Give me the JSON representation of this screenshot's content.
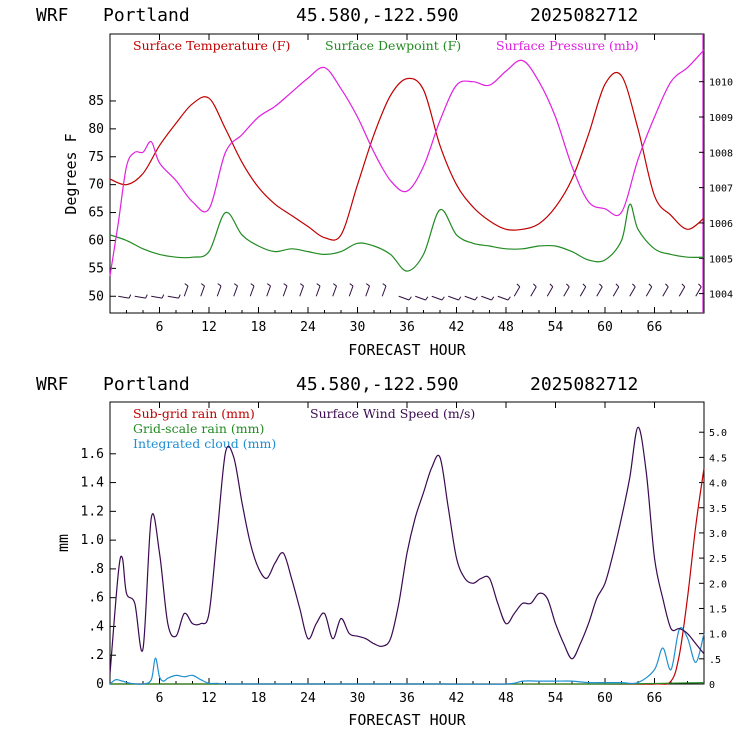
{
  "chart_data": [
    {
      "type": "line",
      "header": {
        "model": "WRF",
        "station": "Portland",
        "coords": "45.580,-122.590",
        "run": "2025082712"
      },
      "xlabel": "FORECAST HOUR",
      "ylabel": "Degrees F",
      "xlim": [
        0,
        72
      ],
      "ylim": [
        47,
        97
      ],
      "xticks": [
        "6",
        "12",
        "18",
        "24",
        "30",
        "36",
        "42",
        "48",
        "54",
        "60",
        "66"
      ],
      "yticks": [
        "50",
        "55",
        "60",
        "65",
        "70",
        "75",
        "80",
        "85"
      ],
      "y2lim": [
        1003.45,
        1011.35
      ],
      "y2ticks": [
        "1004",
        "1005",
        "1006",
        "1007",
        "1008",
        "1009",
        "1010"
      ],
      "colors": {
        "temperature": "#c00000",
        "dewpoint": "#228b22",
        "pressure": "#e020e0",
        "wind": "#301040"
      },
      "series": [
        {
          "name": "Surface Temperature (F)",
          "axis": "left",
          "x": [
            0,
            2,
            4,
            6,
            8,
            10,
            12,
            14,
            16,
            18,
            20,
            22,
            24,
            26,
            28,
            30,
            32,
            34,
            36,
            38,
            40,
            42,
            44,
            46,
            48,
            50,
            52,
            54,
            56,
            58,
            60,
            62,
            64,
            66,
            68,
            70,
            72
          ],
          "values": [
            71,
            70,
            72,
            77,
            81,
            84.5,
            85.5,
            80,
            74,
            69.5,
            66.5,
            64.5,
            62.5,
            60.5,
            61,
            70,
            79,
            86,
            89,
            87,
            77,
            70,
            66,
            63.5,
            62,
            62,
            63,
            66,
            71,
            79,
            88,
            89.5,
            80,
            68,
            64.5,
            62,
            64
          ]
        },
        {
          "name": "Surface Dewpoint (F)",
          "axis": "left",
          "x": [
            0,
            2,
            4,
            6,
            8,
            10,
            12,
            14,
            16,
            18,
            20,
            22,
            24,
            26,
            28,
            30,
            32,
            34,
            36,
            38,
            40,
            42,
            44,
            46,
            48,
            50,
            52,
            54,
            56,
            58,
            60,
            62,
            63,
            64,
            66,
            68,
            70,
            72
          ],
          "values": [
            61,
            60,
            58.5,
            57.5,
            57,
            57,
            58,
            65,
            61,
            59,
            58,
            58.5,
            58,
            57.5,
            58,
            59.5,
            59,
            57.5,
            54.5,
            57.5,
            65.5,
            61,
            59.5,
            59,
            58.5,
            58.5,
            59,
            59,
            58,
            56.5,
            56.5,
            60,
            66.5,
            62,
            58.5,
            57.5,
            57,
            57
          ]
        },
        {
          "name": "Surface Pressure (mb)",
          "axis": "right",
          "x": [
            0,
            1,
            2,
            3,
            4,
            5,
            6,
            8,
            10,
            12,
            14,
            16,
            18,
            20,
            22,
            24,
            26,
            28,
            30,
            32,
            34,
            36,
            38,
            40,
            42,
            44,
            46,
            48,
            50,
            52,
            54,
            56,
            58,
            60,
            62,
            64,
            66,
            68,
            70,
            72
          ],
          "values": [
            1004.5,
            1006,
            1007.6,
            1008,
            1008,
            1008.3,
            1007.7,
            1007.2,
            1006.6,
            1006.4,
            1008,
            1008.5,
            1009,
            1009.3,
            1009.7,
            1010.1,
            1010.4,
            1009.8,
            1009,
            1008,
            1007.2,
            1006.9,
            1007.6,
            1008.9,
            1009.9,
            1010,
            1009.9,
            1010.3,
            1010.6,
            1010,
            1009,
            1007.6,
            1006.6,
            1006.4,
            1006.3,
            1007.8,
            1009,
            1010,
            1010.4,
            1010.9
          ]
        },
        {
          "name": "wind barbs",
          "axis": "left",
          "x": [
            1,
            3,
            5,
            7,
            9,
            11,
            13,
            15,
            17,
            19,
            21,
            23,
            25,
            27,
            29,
            31,
            33,
            35,
            37,
            39,
            41,
            43,
            45,
            47,
            49,
            51,
            53,
            55,
            57,
            59,
            61,
            63,
            65,
            67,
            69,
            71
          ],
          "values": [
            50,
            50,
            50,
            50,
            50,
            50,
            50,
            50,
            50,
            50,
            50,
            50,
            50,
            50,
            50,
            50,
            50,
            50,
            50,
            50,
            50,
            50,
            50,
            50,
            50,
            50,
            50,
            50,
            50,
            50,
            50,
            50,
            50,
            50,
            50,
            50
          ]
        }
      ]
    },
    {
      "type": "line",
      "header": {
        "model": "WRF",
        "station": "Portland",
        "coords": "45.580,-122.590",
        "run": "2025082712"
      },
      "xlabel": "FORECAST HOUR",
      "ylabel": "mm",
      "xlim": [
        0,
        72
      ],
      "ylim": [
        0,
        1.96
      ],
      "xticks": [
        "6",
        "12",
        "18",
        "24",
        "30",
        "36",
        "42",
        "48",
        "54",
        "60",
        "66"
      ],
      "yticks": [
        "0",
        ".2",
        ".4",
        ".6",
        ".8",
        "1.0",
        "1.2",
        "1.4",
        "1.6"
      ],
      "y2lim": [
        0,
        5.6
      ],
      "y2ticks": [
        "0",
        ".5",
        "1.0",
        "1.5",
        "2.0",
        "2.5",
        "3.0",
        "3.5",
        "4.0",
        "4.5",
        "5.0"
      ],
      "colors": {
        "subgrid": "#c00000",
        "gridscale": "#228b22",
        "cloud": "#1f8fd0",
        "wind": "#3a0a50"
      },
      "series": [
        {
          "name": "Sub-grid rain (mm)",
          "axis": "left",
          "x": [
            0,
            10,
            20,
            30,
            40,
            50,
            60,
            66,
            68,
            69,
            70,
            71,
            72
          ],
          "values": [
            0,
            0,
            0,
            0,
            0,
            0,
            0,
            0,
            0.02,
            0.2,
            0.6,
            1.1,
            1.5
          ]
        },
        {
          "name": "Grid-scale rain (mm)",
          "axis": "left",
          "x": [
            0,
            20,
            40,
            60,
            72
          ],
          "values": [
            0,
            0,
            0,
            0,
            0.01
          ]
        },
        {
          "name": "Integrated cloud (mm)",
          "axis": "left",
          "x": [
            0,
            0.7,
            1.5,
            2.5,
            4,
            5,
            5.5,
            6,
            6.5,
            7,
            8,
            9,
            10,
            11,
            12,
            13,
            14,
            20,
            30,
            40,
            48,
            50,
            52,
            54,
            56,
            58,
            60,
            62,
            64,
            66,
            67,
            68,
            69,
            70,
            71,
            72
          ],
          "values": [
            0,
            0.03,
            0.02,
            0.005,
            0,
            0.03,
            0.18,
            0.05,
            0.02,
            0.04,
            0.06,
            0.05,
            0.06,
            0.03,
            0.005,
            0.005,
            0,
            0,
            0,
            0,
            0,
            0.02,
            0.02,
            0.02,
            0.02,
            0.01,
            0.01,
            0.01,
            0.01,
            0.1,
            0.25,
            0.1,
            0.38,
            0.32,
            0.15,
            0.35
          ]
        },
        {
          "name": "Surface Wind Speed (m/s)",
          "axis": "right",
          "x": [
            0,
            1,
            1.5,
            2,
            3,
            4,
            5,
            6,
            7,
            8,
            9,
            10,
            11,
            12,
            13,
            14,
            15,
            16,
            17,
            18,
            19,
            20,
            21,
            22,
            23,
            24,
            25,
            26,
            27,
            28,
            29,
            30,
            31,
            32,
            33,
            34,
            35,
            36,
            37,
            38,
            39,
            40,
            41,
            42,
            43,
            44,
            45,
            46,
            47,
            48,
            49,
            50,
            51,
            52,
            53,
            54,
            55,
            56,
            57,
            58,
            59,
            60,
            61,
            62,
            63,
            64,
            65,
            66,
            67,
            68,
            69,
            70,
            71,
            72
          ],
          "values": [
            0.2,
            2.2,
            2.5,
            1.8,
            1.6,
            0.7,
            3.3,
            2.6,
            1.2,
            0.95,
            1.4,
            1.2,
            1.2,
            1.4,
            3.0,
            4.6,
            4.5,
            3.6,
            2.8,
            2.3,
            2.1,
            2.4,
            2.6,
            2.1,
            1.5,
            0.9,
            1.2,
            1.4,
            0.9,
            1.3,
            1.0,
            0.95,
            0.9,
            0.8,
            0.75,
            0.9,
            1.6,
            2.6,
            3.3,
            3.8,
            4.3,
            4.5,
            3.5,
            2.5,
            2.1,
            2.0,
            2.1,
            2.1,
            1.6,
            1.2,
            1.4,
            1.6,
            1.6,
            1.8,
            1.7,
            1.2,
            0.8,
            0.5,
            0.8,
            1.2,
            1.7,
            2.0,
            2.6,
            3.3,
            4.1,
            5.1,
            4.2,
            2.5,
            1.7,
            1.1,
            1.1,
            1.0,
            0.8,
            0.6
          ]
        }
      ]
    }
  ]
}
